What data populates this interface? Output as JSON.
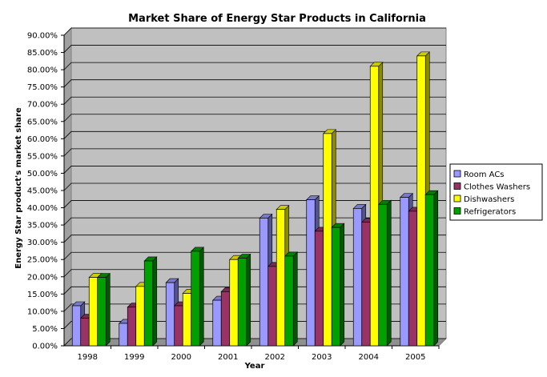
{
  "chart_data": {
    "type": "bar",
    "title": "Market Share of Energy Star Products in California",
    "xlabel": "Year",
    "ylabel": "Energy Star product's market share",
    "categories": [
      "1998",
      "1999",
      "2000",
      "2001",
      "2002",
      "2003",
      "2004",
      "2005"
    ],
    "ylim": [
      0,
      90
    ],
    "y_ticks": [
      "0.00%",
      "5.00%",
      "10.00%",
      "15.00%",
      "20.00%",
      "25.00%",
      "30.00%",
      "35.00%",
      "40.00%",
      "45.00%",
      "50.00%",
      "55.00%",
      "60.00%",
      "65.00%",
      "70.00%",
      "75.00%",
      "80.00%",
      "85.00%",
      "90.00%"
    ],
    "grid": true,
    "legend_position": "right",
    "series": [
      {
        "name": "Room ACs",
        "color": "#9999ff",
        "values": [
          11.6,
          6.5,
          18.3,
          13.2,
          37.0,
          42.3,
          39.8,
          43.0
        ]
      },
      {
        "name": "Clothes Washers",
        "color": "#993366",
        "values": [
          8.0,
          11.2,
          11.6,
          15.7,
          23.0,
          33.2,
          35.8,
          39.0
        ]
      },
      {
        "name": "Dishwashers",
        "color": "#ffff00",
        "values": [
          19.8,
          17.2,
          15.2,
          25.0,
          39.5,
          61.5,
          81.0,
          84.0
        ]
      },
      {
        "name": "Refrigerators",
        "color": "#00a000",
        "values": [
          19.8,
          24.6,
          27.4,
          25.4,
          26.0,
          34.3,
          41.0,
          43.8
        ]
      }
    ]
  }
}
